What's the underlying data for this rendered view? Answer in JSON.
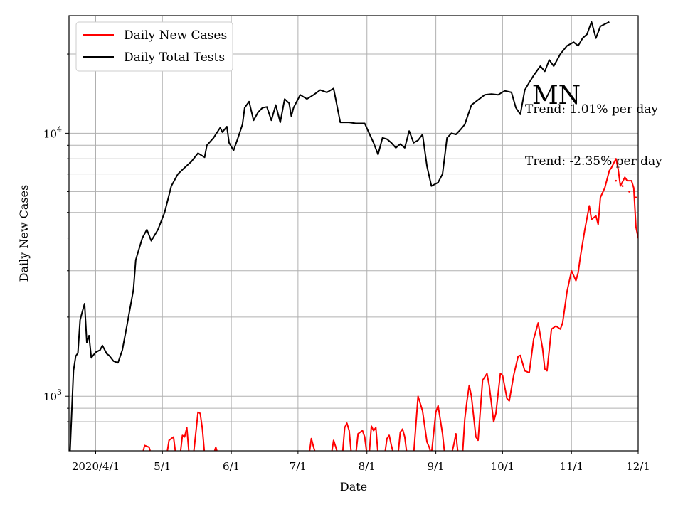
{
  "chart_data": {
    "type": "line",
    "title": "MN",
    "xlabel": "Date",
    "ylabel": "Daily New Cases",
    "yscale": "log",
    "grid": true,
    "ylim": [
      620,
      28000
    ],
    "xlim": [
      "2020-03-20",
      "2020-12-01"
    ],
    "x_ticks": [
      {
        "date": "2020-04-01",
        "label": "2020/4/1"
      },
      {
        "date": "2020-05-01",
        "label": "5/1"
      },
      {
        "date": "2020-06-01",
        "label": "6/1"
      },
      {
        "date": "2020-07-01",
        "label": "7/1"
      },
      {
        "date": "2020-08-01",
        "label": "8/1"
      },
      {
        "date": "2020-09-01",
        "label": "9/1"
      },
      {
        "date": "2020-10-01",
        "label": "10/1"
      },
      {
        "date": "2020-11-01",
        "label": "11/1"
      },
      {
        "date": "2020-12-01",
        "label": "12/1"
      }
    ],
    "y_major_ticks": [
      {
        "value": 1000,
        "base": "10",
        "exp": "3"
      },
      {
        "value": 10000,
        "base": "10",
        "exp": "4"
      }
    ],
    "y_minor_ticks": [
      700,
      800,
      900,
      2000,
      3000,
      4000,
      5000,
      6000,
      7000,
      8000,
      9000,
      20000
    ],
    "legend": {
      "position": "top-left",
      "entries": [
        {
          "label": "Daily New Cases",
          "color": "#ff0000"
        },
        {
          "label": "Daily Total Tests",
          "color": "#000000"
        }
      ]
    },
    "annotations": {
      "trend_tests": "Trend: 1.01% per day",
      "trend_cases": "Trend: -2.35% per day"
    },
    "series": [
      {
        "name": "Daily Total Tests",
        "color": "#000000",
        "points": [
          [
            "2020-03-20",
            500
          ],
          [
            "2020-03-22",
            1250
          ],
          [
            "2020-03-23",
            1420
          ],
          [
            "2020-03-24",
            1460
          ],
          [
            "2020-03-25",
            1950
          ],
          [
            "2020-03-26",
            2100
          ],
          [
            "2020-03-27",
            2250
          ],
          [
            "2020-03-28",
            1600
          ],
          [
            "2020-03-29",
            1700
          ],
          [
            "2020-03-30",
            1400
          ],
          [
            "2020-04-01",
            1470
          ],
          [
            "2020-04-03",
            1500
          ],
          [
            "2020-04-04",
            1560
          ],
          [
            "2020-04-06",
            1450
          ],
          [
            "2020-04-07",
            1430
          ],
          [
            "2020-04-09",
            1360
          ],
          [
            "2020-04-11",
            1340
          ],
          [
            "2020-04-13",
            1500
          ],
          [
            "2020-04-15",
            1850
          ],
          [
            "2020-04-18",
            2550
          ],
          [
            "2020-04-19",
            3300
          ],
          [
            "2020-04-22",
            4000
          ],
          [
            "2020-04-24",
            4300
          ],
          [
            "2020-04-26",
            3900
          ],
          [
            "2020-04-29",
            4300
          ],
          [
            "2020-05-02",
            5000
          ],
          [
            "2020-05-05",
            6300
          ],
          [
            "2020-05-08",
            7000
          ],
          [
            "2020-05-11",
            7400
          ],
          [
            "2020-05-14",
            7800
          ],
          [
            "2020-05-17",
            8400
          ],
          [
            "2020-05-20",
            8100
          ],
          [
            "2020-05-21",
            9000
          ],
          [
            "2020-05-24",
            9600
          ],
          [
            "2020-05-27",
            10500
          ],
          [
            "2020-05-28",
            10100
          ],
          [
            "2020-05-30",
            10600
          ],
          [
            "2020-05-31",
            9200
          ],
          [
            "2020-06-02",
            8600
          ],
          [
            "2020-06-04",
            9600
          ],
          [
            "2020-06-06",
            10800
          ],
          [
            "2020-06-07",
            12500
          ],
          [
            "2020-06-09",
            13200
          ],
          [
            "2020-06-11",
            11200
          ],
          [
            "2020-06-13",
            12000
          ],
          [
            "2020-06-15",
            12500
          ],
          [
            "2020-06-17",
            12600
          ],
          [
            "2020-06-19",
            11200
          ],
          [
            "2020-06-21",
            12800
          ],
          [
            "2020-06-23",
            11000
          ],
          [
            "2020-06-25",
            13500
          ],
          [
            "2020-06-27",
            13000
          ],
          [
            "2020-06-28",
            11600
          ],
          [
            "2020-06-29",
            12500
          ],
          [
            "2020-07-02",
            14000
          ],
          [
            "2020-07-05",
            13500
          ],
          [
            "2020-07-08",
            14000
          ],
          [
            "2020-07-11",
            14600
          ],
          [
            "2020-07-14",
            14300
          ],
          [
            "2020-07-17",
            14800
          ],
          [
            "2020-07-20",
            11000
          ],
          [
            "2020-07-24",
            11000
          ],
          [
            "2020-07-27",
            10900
          ],
          [
            "2020-07-31",
            10900
          ],
          [
            "2020-08-02",
            10000
          ],
          [
            "2020-08-04",
            9200
          ],
          [
            "2020-08-06",
            8300
          ],
          [
            "2020-08-08",
            9600
          ],
          [
            "2020-08-10",
            9500
          ],
          [
            "2020-08-12",
            9200
          ],
          [
            "2020-08-14",
            8800
          ],
          [
            "2020-08-16",
            9100
          ],
          [
            "2020-08-18",
            8800
          ],
          [
            "2020-08-20",
            10200
          ],
          [
            "2020-08-22",
            9200
          ],
          [
            "2020-08-24",
            9400
          ],
          [
            "2020-08-26",
            9900
          ],
          [
            "2020-08-28",
            7500
          ],
          [
            "2020-08-30",
            6300
          ],
          [
            "2020-09-02",
            6500
          ],
          [
            "2020-09-04",
            7000
          ],
          [
            "2020-09-06",
            9600
          ],
          [
            "2020-09-08",
            10000
          ],
          [
            "2020-09-10",
            9900
          ],
          [
            "2020-09-12",
            10300
          ],
          [
            "2020-09-14",
            10800
          ],
          [
            "2020-09-17",
            12800
          ],
          [
            "2020-09-20",
            13400
          ],
          [
            "2020-09-23",
            14000
          ],
          [
            "2020-09-26",
            14100
          ],
          [
            "2020-09-29",
            14000
          ],
          [
            "2020-10-02",
            14500
          ],
          [
            "2020-10-05",
            14300
          ],
          [
            "2020-10-07",
            12500
          ],
          [
            "2020-10-09",
            11800
          ],
          [
            "2020-10-11",
            14600
          ],
          [
            "2020-10-13",
            15600
          ],
          [
            "2020-10-15",
            16600
          ],
          [
            "2020-10-18",
            18000
          ],
          [
            "2020-10-20",
            17200
          ],
          [
            "2020-10-22",
            19000
          ],
          [
            "2020-10-24",
            18000
          ],
          [
            "2020-10-27",
            20000
          ],
          [
            "2020-10-30",
            21500
          ],
          [
            "2020-11-02",
            22200
          ],
          [
            "2020-11-04",
            21500
          ],
          [
            "2020-11-06",
            23000
          ],
          [
            "2020-11-08",
            23800
          ],
          [
            "2020-11-10",
            26500
          ],
          [
            "2020-11-12",
            23000
          ],
          [
            "2020-11-14",
            25500
          ],
          [
            "2020-11-16",
            26000
          ],
          [
            "2020-11-18",
            26500
          ]
        ]
      },
      {
        "name": "Daily New Cases",
        "color": "#ff0000",
        "segments": [
          [
            [
              "2020-04-22",
              600
            ],
            [
              "2020-04-23",
              650
            ],
            [
              "2020-04-25",
              640
            ],
            [
              "2020-04-26",
              600
            ]
          ],
          [
            [
              "2020-05-03",
              600
            ],
            [
              "2020-05-04",
              680
            ],
            [
              "2020-05-06",
              700
            ],
            [
              "2020-05-07",
              600
            ]
          ],
          [
            [
              "2020-05-09",
              600
            ],
            [
              "2020-05-10",
              710
            ],
            [
              "2020-05-11",
              700
            ],
            [
              "2020-05-12",
              760
            ],
            [
              "2020-05-13",
              600
            ]
          ],
          [
            [
              "2020-05-15",
              600
            ],
            [
              "2020-05-16",
              720
            ],
            [
              "2020-05-17",
              870
            ],
            [
              "2020-05-18",
              860
            ],
            [
              "2020-05-19",
              750
            ],
            [
              "2020-05-20",
              600
            ]
          ],
          [
            [
              "2020-05-24",
              600
            ],
            [
              "2020-05-25",
              640
            ],
            [
              "2020-05-26",
              600
            ]
          ],
          [
            [
              "2020-07-06",
              600
            ],
            [
              "2020-07-07",
              690
            ],
            [
              "2020-07-08",
              640
            ],
            [
              "2020-07-09",
              600
            ]
          ],
          [
            [
              "2020-07-16",
              600
            ],
            [
              "2020-07-17",
              680
            ],
            [
              "2020-07-18",
              640
            ],
            [
              "2020-07-19",
              600
            ]
          ],
          [
            [
              "2020-07-21",
              600
            ],
            [
              "2020-07-22",
              760
            ],
            [
              "2020-07-23",
              790
            ],
            [
              "2020-07-24",
              740
            ],
            [
              "2020-07-25",
              600
            ]
          ],
          [
            [
              "2020-07-27",
              600
            ],
            [
              "2020-07-28",
              720
            ],
            [
              "2020-07-30",
              740
            ],
            [
              "2020-07-31",
              700
            ],
            [
              "2020-08-01",
              600
            ]
          ],
          [
            [
              "2020-08-02",
              600
            ],
            [
              "2020-08-03",
              770
            ],
            [
              "2020-08-04",
              740
            ],
            [
              "2020-08-05",
              760
            ],
            [
              "2020-08-06",
              600
            ]
          ],
          [
            [
              "2020-08-09",
              600
            ],
            [
              "2020-08-10",
              690
            ],
            [
              "2020-08-11",
              710
            ],
            [
              "2020-08-12",
              650
            ],
            [
              "2020-08-13",
              600
            ]
          ],
          [
            [
              "2020-08-15",
              600
            ],
            [
              "2020-08-16",
              730
            ],
            [
              "2020-08-17",
              750
            ],
            [
              "2020-08-18",
              700
            ],
            [
              "2020-08-19",
              600
            ]
          ],
          [
            [
              "2020-08-22",
              600
            ],
            [
              "2020-08-24",
              1000
            ],
            [
              "2020-08-26",
              880
            ],
            [
              "2020-08-28",
              670
            ],
            [
              "2020-08-29",
              640
            ],
            [
              "2020-08-30",
              600
            ]
          ],
          [
            [
              "2020-08-30",
              600
            ],
            [
              "2020-09-01",
              870
            ],
            [
              "2020-09-02",
              920
            ],
            [
              "2020-09-04",
              720
            ],
            [
              "2020-09-05",
              600
            ]
          ],
          [
            [
              "2020-09-08",
              600
            ],
            [
              "2020-09-09",
              650
            ],
            [
              "2020-09-10",
              720
            ],
            [
              "2020-09-11",
              600
            ]
          ],
          [
            [
              "2020-09-13",
              600
            ],
            [
              "2020-09-14",
              820
            ],
            [
              "2020-09-15",
              960
            ],
            [
              "2020-09-16",
              1100
            ],
            [
              "2020-09-17",
              1000
            ],
            [
              "2020-09-19",
              700
            ],
            [
              "2020-09-20",
              680
            ],
            [
              "2020-09-22",
              1150
            ],
            [
              "2020-09-24",
              1220
            ],
            [
              "2020-09-25",
              1100
            ],
            [
              "2020-09-27",
              800
            ],
            [
              "2020-09-28",
              860
            ],
            [
              "2020-09-30",
              1220
            ],
            [
              "2020-10-01",
              1200
            ],
            [
              "2020-10-03",
              980
            ],
            [
              "2020-10-04",
              960
            ],
            [
              "2020-10-06",
              1200
            ],
            [
              "2020-10-08",
              1420
            ],
            [
              "2020-10-09",
              1430
            ],
            [
              "2020-10-11",
              1250
            ],
            [
              "2020-10-13",
              1230
            ],
            [
              "2020-10-15",
              1650
            ],
            [
              "2020-10-17",
              1900
            ],
            [
              "2020-10-19",
              1520
            ],
            [
              "2020-10-20",
              1270
            ],
            [
              "2020-10-21",
              1250
            ],
            [
              "2020-10-23",
              1800
            ],
            [
              "2020-10-25",
              1850
            ],
            [
              "2020-10-27",
              1800
            ],
            [
              "2020-10-28",
              1900
            ],
            [
              "2020-10-30",
              2500
            ],
            [
              "2020-11-01",
              3000
            ],
            [
              "2020-11-03",
              2750
            ],
            [
              "2020-11-04",
              2950
            ],
            [
              "2020-11-05",
              3400
            ],
            [
              "2020-11-07",
              4300
            ],
            [
              "2020-11-09",
              5300
            ],
            [
              "2020-11-10",
              4700
            ],
            [
              "2020-11-12",
              4850
            ],
            [
              "2020-11-13",
              4500
            ],
            [
              "2020-11-14",
              5700
            ],
            [
              "2020-11-16",
              6200
            ],
            [
              "2020-11-18",
              7200
            ],
            [
              "2020-11-19",
              7400
            ],
            [
              "2020-11-21",
              8000
            ],
            [
              "2020-11-22",
              7300
            ],
            [
              "2020-11-23",
              6300
            ],
            [
              "2020-11-25",
              6800
            ],
            [
              "2020-11-26",
              6600
            ],
            [
              "2020-11-28",
              6600
            ],
            [
              "2020-11-29",
              6200
            ],
            [
              "2020-11-30",
              4400
            ],
            [
              "2020-12-01",
              4000
            ],
            [
              "2020-12-03",
              7400
            ]
          ]
        ],
        "trend_dots": [
          [
            "2020-11-21",
            6600
          ],
          [
            "2020-11-24",
            6300
          ],
          [
            "2020-11-27",
            6000
          ],
          [
            "2020-11-30",
            5700
          ],
          [
            "2020-12-03",
            5400
          ]
        ]
      }
    ]
  }
}
